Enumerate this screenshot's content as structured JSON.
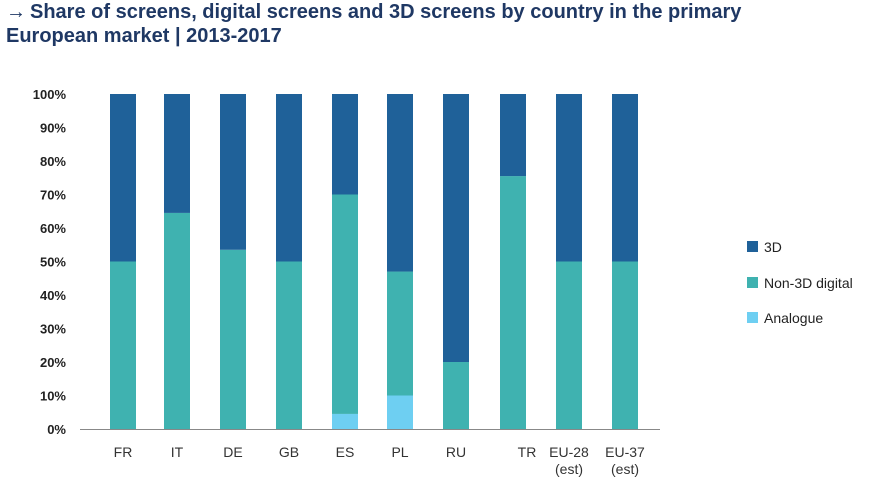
{
  "title": "Share of screens, digital screens and 3D screens by country in the primary European market | 2013-2017",
  "title_arrow": "→",
  "colors": {
    "3d": "#1f6199",
    "nondigital": "#3fb2b0",
    "analogue": "#6ecff2",
    "axis": "#888888"
  },
  "chart_data": {
    "type": "bar",
    "stacked": true,
    "title": "Share of screens, digital screens and 3D screens by country in the primary European market | 2013-2017",
    "xlabel": "",
    "ylabel": "",
    "ylim": [
      0,
      100
    ],
    "yticks": [
      "0%",
      "10%",
      "20%",
      "30%",
      "40%",
      "50%",
      "60%",
      "70%",
      "80%",
      "90%",
      "100%"
    ],
    "categories": [
      [
        "FR"
      ],
      [
        "IT"
      ],
      [
        "DE"
      ],
      [
        "GB"
      ],
      [
        "ES"
      ],
      [
        "PL"
      ],
      [
        "RU"
      ],
      [
        "TR"
      ],
      [
        "EU-28",
        "(est)"
      ],
      [
        "EU-37",
        "(est)"
      ]
    ],
    "series": [
      {
        "name": "Analogue",
        "key": "analogue",
        "values": [
          0,
          0,
          0,
          0,
          4.5,
          10,
          0,
          0,
          0,
          0
        ]
      },
      {
        "name": "Non-3D digital",
        "key": "nondigital",
        "values": [
          50,
          64.5,
          53.5,
          50,
          65.5,
          37,
          20,
          75.5,
          50,
          50
        ]
      },
      {
        "name": "3D",
        "key": "3d",
        "values": [
          50,
          35.5,
          46.5,
          50,
          30,
          53,
          80,
          24.5,
          50,
          50
        ]
      }
    ],
    "legend": [
      {
        "label": "3D",
        "key": "3d"
      },
      {
        "label": "Non-3D digital",
        "key": "nondigital"
      },
      {
        "label": "Analogue",
        "key": "analogue"
      }
    ],
    "legend_position": "right"
  }
}
